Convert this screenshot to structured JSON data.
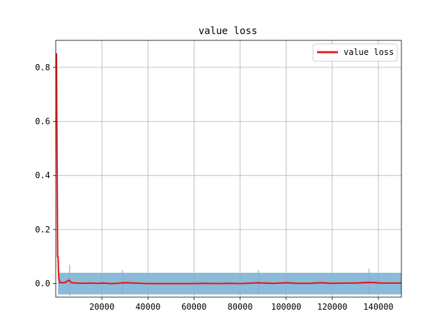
{
  "chart_data": {
    "type": "line",
    "title": "value loss",
    "xlabel": "",
    "ylabel": "",
    "xlim": [
      0,
      150000
    ],
    "ylim": [
      -0.05,
      0.9
    ],
    "xticks": [
      20000,
      40000,
      60000,
      80000,
      100000,
      120000,
      140000
    ],
    "yticks": [
      0.0,
      0.2,
      0.4,
      0.6,
      0.8
    ],
    "grid": true,
    "legend": {
      "placement": "top-right",
      "entries": [
        "value loss"
      ]
    },
    "colors": {
      "series": "#e41a1c",
      "band": "#7fb2d5"
    },
    "series": [
      {
        "name": "value loss",
        "x": [
          0,
          300,
          600,
          800,
          1000,
          1300,
          1800,
          2500,
          3500,
          4500,
          5500,
          6000,
          6500,
          7500,
          9000,
          12000,
          15000,
          18000,
          21000,
          24000,
          27000,
          29000,
          31000,
          34000,
          37000,
          40000,
          45000,
          50000,
          55000,
          60000,
          65000,
          70000,
          75000,
          80000,
          85000,
          88000,
          90000,
          95000,
          100000,
          105000,
          110000,
          115000,
          120000,
          125000,
          130000,
          135000,
          138000,
          141000,
          145000,
          150000
        ],
        "values": [
          0.85,
          0.85,
          0.4,
          0.1,
          0.1,
          0.02,
          0.003,
          0.004,
          0.003,
          0.006,
          0.012,
          0.012,
          0.005,
          0.003,
          0.002,
          0.001,
          0.002,
          0.001,
          0.002,
          0.0,
          0.001,
          0.003,
          0.003,
          0.002,
          0.001,
          0.0,
          0.0,
          0.0,
          0.0,
          0.0,
          0.001,
          0.0,
          0.001,
          0.0,
          0.002,
          0.003,
          0.002,
          0.001,
          0.003,
          0.001,
          0.001,
          0.003,
          0.001,
          0.002,
          0.002,
          0.004,
          0.004,
          0.002,
          0.002,
          0.002
        ]
      }
    ],
    "band": {
      "x": [
        1000,
        150000
      ],
      "lower": [
        -0.04,
        -0.04
      ],
      "upper": [
        0.04,
        0.04
      ]
    },
    "spikes": [
      {
        "x": 6000,
        "lower": -0.045,
        "upper": 0.07
      },
      {
        "x": 29000,
        "lower": -0.04,
        "upper": 0.05
      },
      {
        "x": 88000,
        "lower": -0.04,
        "upper": 0.05
      },
      {
        "x": 136000,
        "lower": -0.04,
        "upper": 0.055
      }
    ]
  }
}
